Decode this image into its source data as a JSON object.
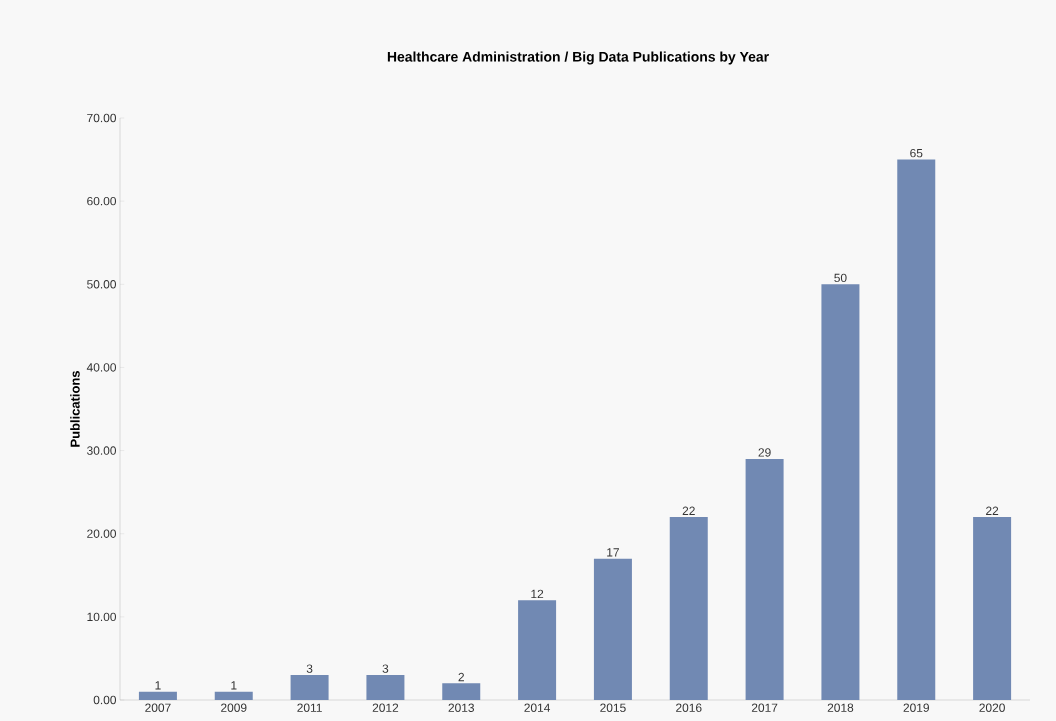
{
  "chart_data": {
    "type": "bar",
    "title": "Healthcare Administration / Big Data Publications by Year",
    "ylabel": "Publications",
    "categories": [
      "2007",
      "2009",
      "2011",
      "2012",
      "2013",
      "2014",
      "2015",
      "2016",
      "2017",
      "2018",
      "2019",
      "2020"
    ],
    "values": [
      1,
      1,
      3,
      3,
      2,
      12,
      17,
      22,
      29,
      50,
      65,
      22
    ],
    "color": "#7189b3",
    "data_labels": true,
    "grid": false,
    "ylim": [
      0,
      70
    ],
    "yticks": [
      {
        "value": 0,
        "label": "0.00"
      },
      {
        "value": 10,
        "label": "10.00"
      },
      {
        "value": 20,
        "label": "20.00"
      },
      {
        "value": 30,
        "label": "30.00"
      },
      {
        "value": 40,
        "label": "40.00"
      },
      {
        "value": 50,
        "label": "50.00"
      },
      {
        "value": 60,
        "label": "60.00"
      },
      {
        "value": 70,
        "label": "70.00"
      }
    ]
  }
}
